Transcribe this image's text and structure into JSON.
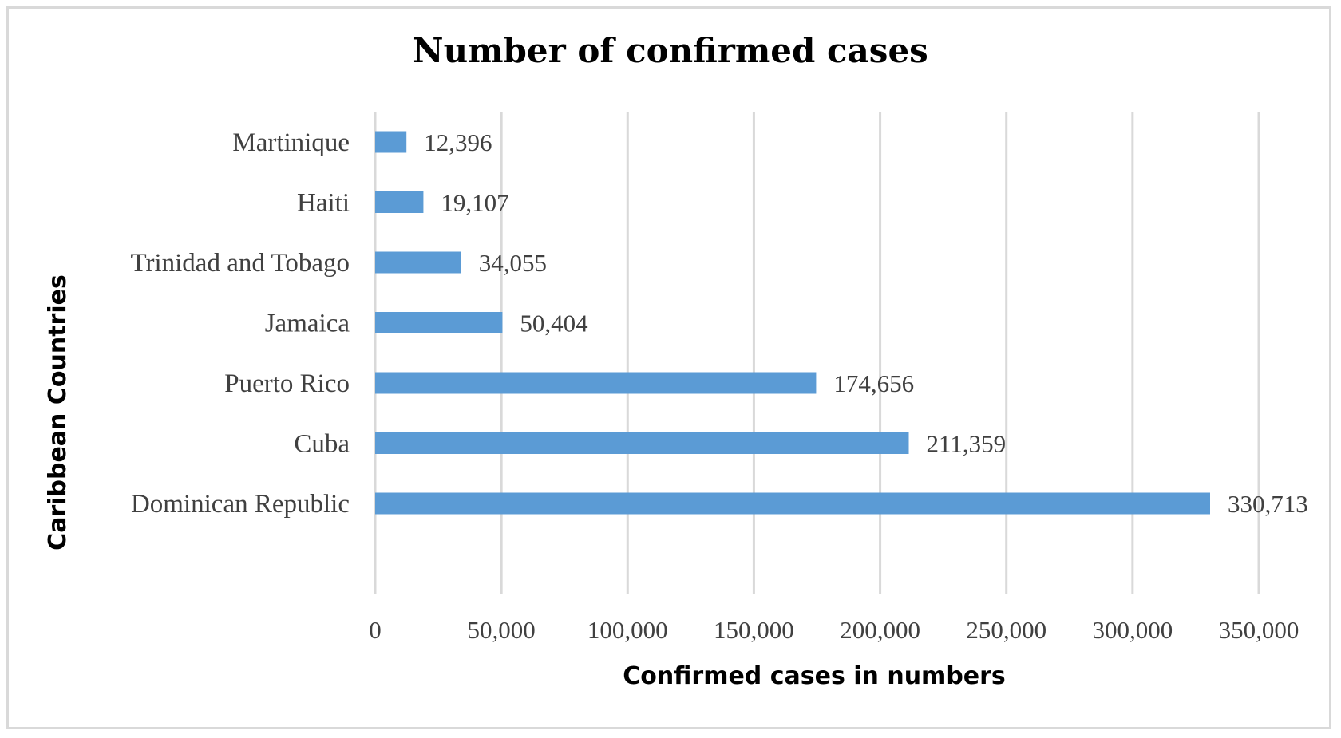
{
  "chart_data": {
    "type": "bar",
    "orientation": "horizontal",
    "title": "Number of confirmed cases",
    "xlabel": "Confirmed cases in numbers",
    "ylabel": "Caribbean Countries",
    "categories": [
      "Martinique",
      "Haiti",
      "Trinidad and Tobago",
      "Jamaica",
      "Puerto Rico",
      "Cuba",
      "Dominican Republic"
    ],
    "values": [
      12396,
      19107,
      34055,
      50404,
      174656,
      211359,
      330713
    ],
    "data_labels": [
      "12,396",
      "19,107",
      "34,055",
      "50,404",
      "174,656",
      "211,359",
      "330,713"
    ],
    "xlim": [
      0,
      350000
    ],
    "x_ticks": [
      0,
      50000,
      100000,
      150000,
      200000,
      250000,
      300000,
      350000
    ],
    "x_tick_labels": [
      "0",
      "50,000",
      "100,000",
      "150,000",
      "200,000",
      "250,000",
      "300,000",
      "350,000"
    ],
    "grid": "vertical",
    "legend": "none",
    "bar_color": "#5b9bd5",
    "grid_color": "#d9d9d9"
  }
}
